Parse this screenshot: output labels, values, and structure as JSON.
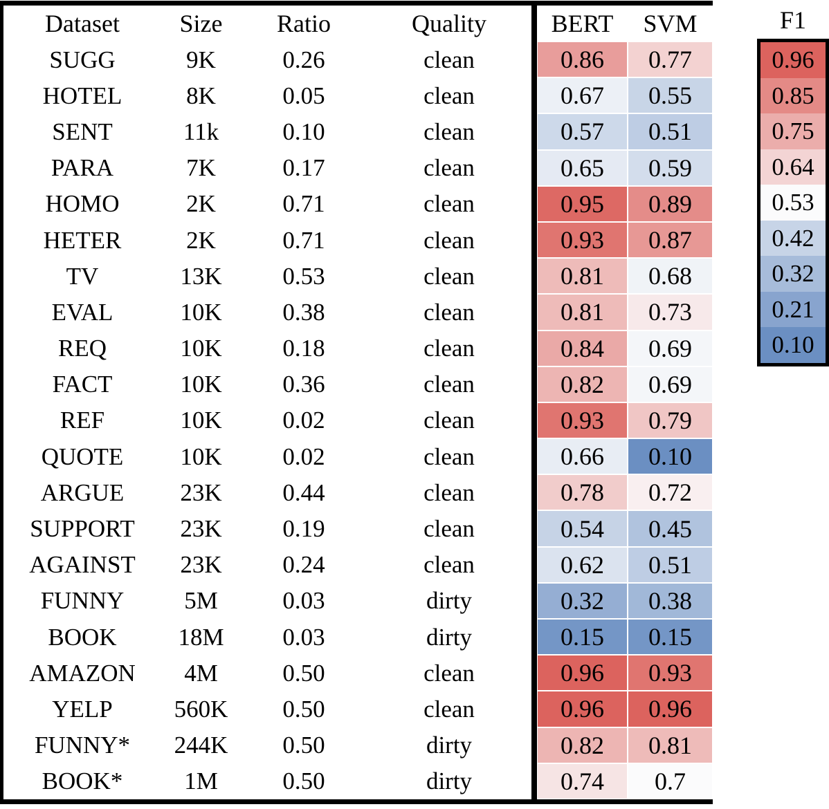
{
  "chart_data": {
    "type": "heatmap",
    "columns": [
      "Dataset",
      "Size",
      "Ratio",
      "Quality"
    ],
    "score_columns": [
      "BERT",
      "SVM"
    ],
    "rows": [
      {
        "dataset": "SUGG",
        "size": "9K",
        "ratio": "0.26",
        "quality": "clean",
        "bert": "0.86",
        "svm": "0.77"
      },
      {
        "dataset": "HOTEL",
        "size": "8K",
        "ratio": "0.05",
        "quality": "clean",
        "bert": "0.67",
        "svm": "0.55"
      },
      {
        "dataset": "SENT",
        "size": "11k",
        "ratio": "0.10",
        "quality": "clean",
        "bert": "0.57",
        "svm": "0.51"
      },
      {
        "dataset": "PARA",
        "size": "7K",
        "ratio": "0.17",
        "quality": "clean",
        "bert": "0.65",
        "svm": "0.59"
      },
      {
        "dataset": "HOMO",
        "size": "2K",
        "ratio": "0.71",
        "quality": "clean",
        "bert": "0.95",
        "svm": "0.89"
      },
      {
        "dataset": "HETER",
        "size": "2K",
        "ratio": "0.71",
        "quality": "clean",
        "bert": "0.93",
        "svm": "0.87"
      },
      {
        "dataset": "TV",
        "size": "13K",
        "ratio": "0.53",
        "quality": "clean",
        "bert": "0.81",
        "svm": "0.68"
      },
      {
        "dataset": "EVAL",
        "size": "10K",
        "ratio": "0.38",
        "quality": "clean",
        "bert": "0.81",
        "svm": "0.73"
      },
      {
        "dataset": "REQ",
        "size": "10K",
        "ratio": "0.18",
        "quality": "clean",
        "bert": "0.84",
        "svm": "0.69"
      },
      {
        "dataset": "FACT",
        "size": "10K",
        "ratio": "0.36",
        "quality": "clean",
        "bert": "0.82",
        "svm": "0.69"
      },
      {
        "dataset": "REF",
        "size": "10K",
        "ratio": "0.02",
        "quality": "clean",
        "bert": "0.93",
        "svm": "0.79"
      },
      {
        "dataset": "QUOTE",
        "size": "10K",
        "ratio": "0.02",
        "quality": "clean",
        "bert": "0.66",
        "svm": "0.10"
      },
      {
        "dataset": "ARGUE",
        "size": "23K",
        "ratio": "0.44",
        "quality": "clean",
        "bert": "0.78",
        "svm": "0.72"
      },
      {
        "dataset": "SUPPORT",
        "size": "23K",
        "ratio": "0.19",
        "quality": "clean",
        "bert": "0.54",
        "svm": "0.45"
      },
      {
        "dataset": "AGAINST",
        "size": "23K",
        "ratio": "0.24",
        "quality": "clean",
        "bert": "0.62",
        "svm": "0.51"
      },
      {
        "dataset": "FUNNY",
        "size": "5M",
        "ratio": "0.03",
        "quality": "dirty",
        "bert": "0.32",
        "svm": "0.38"
      },
      {
        "dataset": "BOOK",
        "size": "18M",
        "ratio": "0.03",
        "quality": "dirty",
        "bert": "0.15",
        "svm": "0.15"
      },
      {
        "dataset": "AMAZON",
        "size": "4M",
        "ratio": "0.50",
        "quality": "clean",
        "bert": "0.96",
        "svm": "0.93"
      },
      {
        "dataset": "YELP",
        "size": "560K",
        "ratio": "0.50",
        "quality": "clean",
        "bert": "0.96",
        "svm": "0.96"
      },
      {
        "dataset": "FUNNY*",
        "size": "244K",
        "ratio": "0.50",
        "quality": "dirty",
        "bert": "0.82",
        "svm": "0.81"
      },
      {
        "dataset": "BOOK*",
        "size": "1M",
        "ratio": "0.50",
        "quality": "dirty",
        "bert": "0.74",
        "svm": "0.7"
      }
    ],
    "legend": {
      "title": "F1",
      "stops": [
        "0.96",
        "0.85",
        "0.75",
        "0.64",
        "0.53",
        "0.42",
        "0.32",
        "0.21",
        "0.10"
      ]
    },
    "colormap": {
      "red": "#dc635e",
      "white": "#fbfbfc",
      "blue": "#6b8fc2",
      "vmin": 0.1,
      "vmax": 0.96,
      "cell_center": 0.7,
      "legend_center": 0.53,
      "blue_gamma": 0.75
    }
  }
}
